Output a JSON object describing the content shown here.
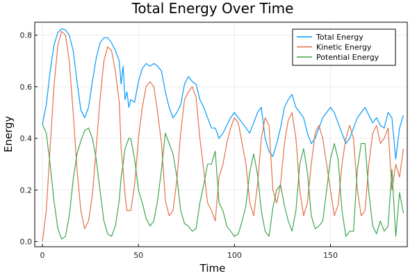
{
  "chart_data": {
    "type": "line",
    "title": "Total Energy Over Time",
    "xlabel": "Time",
    "ylabel": "Energy",
    "xlim": [
      -4,
      190
    ],
    "ylim": [
      -0.02,
      0.85
    ],
    "xticks": [
      0,
      50,
      100,
      150
    ],
    "yticks": [
      0.0,
      0.2,
      0.4,
      0.6,
      0.8
    ],
    "xtick_labels": [
      "0",
      "50",
      "100",
      "150"
    ],
    "ytick_labels": [
      "0.0",
      "0.2",
      "0.4",
      "0.6",
      "0.8"
    ],
    "grid": true,
    "legend_position": "top-right",
    "series": [
      {
        "name": "Total Energy",
        "color": "#009AFA",
        "x": [
          0,
          2,
          4,
          6,
          8,
          10,
          12,
          14,
          16,
          18,
          20,
          22,
          24,
          26,
          28,
          30,
          32,
          34,
          36,
          38,
          40,
          41,
          42,
          43,
          44,
          45,
          46,
          48,
          50,
          52,
          54,
          56,
          58,
          60,
          62,
          64,
          66,
          68,
          70,
          72,
          74,
          76,
          78,
          80,
          82,
          84,
          86,
          88,
          90,
          92,
          94,
          96,
          98,
          100,
          102,
          104,
          106,
          108,
          110,
          112,
          114,
          116,
          118,
          120,
          122,
          124,
          126,
          128,
          130,
          132,
          134,
          136,
          138,
          140,
          142,
          144,
          146,
          148,
          150,
          152,
          154,
          156,
          158,
          160,
          162,
          164,
          166,
          168,
          170,
          172,
          174,
          176,
          178,
          180,
          182,
          184,
          186,
          188
        ],
        "y": [
          0.455,
          0.53,
          0.66,
          0.76,
          0.81,
          0.825,
          0.82,
          0.8,
          0.74,
          0.62,
          0.51,
          0.48,
          0.52,
          0.62,
          0.71,
          0.77,
          0.79,
          0.79,
          0.77,
          0.74,
          0.7,
          0.61,
          0.68,
          0.55,
          0.58,
          0.52,
          0.55,
          0.54,
          0.62,
          0.67,
          0.69,
          0.68,
          0.69,
          0.68,
          0.66,
          0.58,
          0.52,
          0.48,
          0.5,
          0.53,
          0.61,
          0.64,
          0.62,
          0.61,
          0.55,
          0.52,
          0.48,
          0.44,
          0.44,
          0.4,
          0.42,
          0.45,
          0.48,
          0.5,
          0.48,
          0.46,
          0.44,
          0.42,
          0.46,
          0.5,
          0.52,
          0.4,
          0.35,
          0.33,
          0.38,
          0.44,
          0.52,
          0.55,
          0.57,
          0.52,
          0.5,
          0.48,
          0.42,
          0.38,
          0.4,
          0.44,
          0.48,
          0.5,
          0.52,
          0.5,
          0.46,
          0.42,
          0.38,
          0.4,
          0.44,
          0.48,
          0.5,
          0.52,
          0.49,
          0.46,
          0.48,
          0.45,
          0.44,
          0.5,
          0.48,
          0.32,
          0.44,
          0.49
        ]
      },
      {
        "name": "Kinetic Energy",
        "color": "#E26F46",
        "x": [
          0,
          2,
          4,
          6,
          8,
          10,
          12,
          14,
          16,
          18,
          20,
          22,
          24,
          26,
          28,
          30,
          32,
          34,
          36,
          38,
          40,
          41,
          42,
          43,
          44,
          45,
          46,
          48,
          50,
          52,
          54,
          56,
          58,
          60,
          62,
          64,
          66,
          68,
          70,
          72,
          74,
          76,
          78,
          80,
          82,
          84,
          86,
          88,
          90,
          92,
          94,
          96,
          98,
          100,
          102,
          104,
          106,
          108,
          110,
          112,
          114,
          116,
          118,
          120,
          122,
          124,
          126,
          128,
          130,
          132,
          134,
          136,
          138,
          140,
          142,
          144,
          146,
          148,
          150,
          152,
          154,
          156,
          158,
          160,
          162,
          164,
          166,
          168,
          170,
          172,
          174,
          176,
          178,
          180,
          182,
          184,
          186,
          188
        ],
        "y": [
          0.0,
          0.12,
          0.36,
          0.6,
          0.76,
          0.815,
          0.8,
          0.7,
          0.5,
          0.28,
          0.12,
          0.05,
          0.08,
          0.18,
          0.36,
          0.55,
          0.7,
          0.755,
          0.74,
          0.66,
          0.54,
          0.36,
          0.28,
          0.18,
          0.12,
          0.12,
          0.12,
          0.22,
          0.4,
          0.52,
          0.6,
          0.62,
          0.6,
          0.5,
          0.38,
          0.16,
          0.1,
          0.12,
          0.24,
          0.42,
          0.55,
          0.58,
          0.6,
          0.56,
          0.4,
          0.28,
          0.15,
          0.12,
          0.08,
          0.25,
          0.3,
          0.38,
          0.44,
          0.48,
          0.46,
          0.38,
          0.3,
          0.15,
          0.1,
          0.22,
          0.4,
          0.48,
          0.45,
          0.2,
          0.15,
          0.22,
          0.38,
          0.47,
          0.5,
          0.4,
          0.2,
          0.1,
          0.15,
          0.3,
          0.42,
          0.45,
          0.4,
          0.3,
          0.2,
          0.1,
          0.14,
          0.3,
          0.4,
          0.45,
          0.4,
          0.2,
          0.1,
          0.12,
          0.3,
          0.42,
          0.45,
          0.38,
          0.4,
          0.44,
          0.2,
          0.3,
          0.25,
          0.36
        ]
      },
      {
        "name": "Potential Energy",
        "color": "#3DA44D",
        "x": [
          0,
          2,
          4,
          6,
          8,
          10,
          12,
          14,
          16,
          18,
          20,
          22,
          24,
          26,
          28,
          30,
          32,
          34,
          36,
          38,
          40,
          41,
          42,
          43,
          44,
          45,
          46,
          48,
          50,
          52,
          54,
          56,
          58,
          60,
          62,
          64,
          66,
          68,
          70,
          72,
          74,
          76,
          78,
          80,
          82,
          84,
          86,
          88,
          90,
          92,
          94,
          96,
          98,
          100,
          102,
          104,
          106,
          108,
          110,
          112,
          114,
          116,
          118,
          120,
          122,
          124,
          126,
          128,
          130,
          132,
          134,
          136,
          138,
          140,
          142,
          144,
          146,
          148,
          150,
          152,
          154,
          156,
          158,
          160,
          162,
          164,
          166,
          168,
          170,
          172,
          174,
          176,
          178,
          180,
          182,
          184,
          186,
          188
        ],
        "y": [
          0.455,
          0.42,
          0.3,
          0.16,
          0.05,
          0.01,
          0.02,
          0.1,
          0.24,
          0.34,
          0.39,
          0.43,
          0.44,
          0.4,
          0.32,
          0.2,
          0.08,
          0.03,
          0.02,
          0.06,
          0.16,
          0.25,
          0.3,
          0.36,
          0.38,
          0.4,
          0.4,
          0.32,
          0.2,
          0.15,
          0.09,
          0.06,
          0.08,
          0.16,
          0.28,
          0.42,
          0.38,
          0.34,
          0.25,
          0.12,
          0.07,
          0.06,
          0.04,
          0.05,
          0.15,
          0.22,
          0.3,
          0.3,
          0.35,
          0.15,
          0.12,
          0.06,
          0.04,
          0.02,
          0.03,
          0.08,
          0.14,
          0.27,
          0.34,
          0.26,
          0.12,
          0.04,
          0.02,
          0.13,
          0.2,
          0.22,
          0.14,
          0.08,
          0.04,
          0.12,
          0.3,
          0.36,
          0.27,
          0.1,
          0.05,
          0.06,
          0.08,
          0.2,
          0.32,
          0.38,
          0.32,
          0.12,
          0.02,
          0.04,
          0.04,
          0.28,
          0.38,
          0.38,
          0.19,
          0.06,
          0.03,
          0.08,
          0.04,
          0.06,
          0.28,
          0.02,
          0.19,
          0.11
        ]
      }
    ]
  }
}
